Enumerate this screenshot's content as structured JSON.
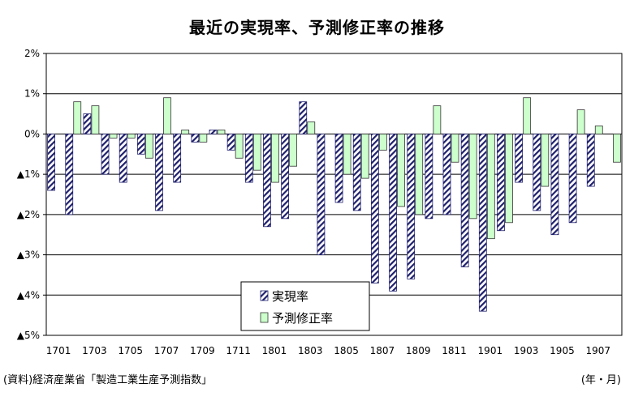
{
  "chart_data": {
    "type": "bar",
    "title": "最近の実現率、予測修正率の推移",
    "xlabel": "",
    "ylabel": "",
    "ylim": [
      -5,
      2
    ],
    "y_ticks": [
      {
        "value": 2,
        "label": "2%"
      },
      {
        "value": 1,
        "label": "1%"
      },
      {
        "value": 0,
        "label": "0%"
      },
      {
        "value": -1,
        "label": "▲1%"
      },
      {
        "value": -2,
        "label": "▲2%"
      },
      {
        "value": -3,
        "label": "▲3%"
      },
      {
        "value": -4,
        "label": "▲4%"
      },
      {
        "value": -5,
        "label": "▲5%"
      }
    ],
    "x_tick_labels": [
      "1701",
      "1703",
      "1705",
      "1707",
      "1709",
      "1711",
      "1801",
      "1803",
      "1805",
      "1807",
      "1809",
      "1811",
      "1901",
      "1903",
      "1905",
      "1907"
    ],
    "categories": [
      "1701",
      "1702",
      "1703",
      "1704",
      "1705",
      "1706",
      "1707",
      "1708",
      "1709",
      "1710",
      "1711",
      "1712",
      "1801",
      "1802",
      "1803",
      "1804",
      "1805",
      "1806",
      "1807",
      "1808",
      "1809",
      "1810",
      "1811",
      "1812",
      "1901",
      "1902",
      "1903",
      "1904",
      "1905",
      "1906",
      "1907",
      "1908"
    ],
    "series": [
      {
        "name": "実現率",
        "pattern": "diagonal-hatch",
        "color": "#1f1f6e",
        "values": [
          -1.4,
          -2.0,
          0.5,
          -1.0,
          -1.2,
          -0.5,
          -1.9,
          -1.2,
          -0.2,
          0.1,
          -0.4,
          -1.2,
          -2.3,
          -2.1,
          0.8,
          -3.0,
          -1.7,
          -1.9,
          -3.7,
          -3.9,
          -3.6,
          -2.1,
          -2.0,
          -3.3,
          -4.4,
          -2.4,
          -1.2,
          -1.9,
          -2.5,
          -2.2,
          -1.3,
          null
        ]
      },
      {
        "name": "予測修正率",
        "pattern": "solid",
        "color": "#ccffcc",
        "values": [
          null,
          0.8,
          0.7,
          -0.1,
          -0.1,
          -0.6,
          0.9,
          0.1,
          -0.2,
          0.1,
          -0.6,
          -0.9,
          -1.2,
          -0.8,
          0.3,
          null,
          -1.0,
          -1.1,
          -0.4,
          -1.8,
          -2.0,
          0.7,
          -0.7,
          -2.1,
          -2.6,
          -2.2,
          0.9,
          -1.3,
          null,
          0.6,
          0.2,
          -0.7
        ]
      }
    ],
    "grid": true,
    "legend": "inside-bottom-center"
  },
  "footer": {
    "source": "(資料)経済産業省「製造工業生産予測指数」",
    "unit": "(年・月)"
  }
}
